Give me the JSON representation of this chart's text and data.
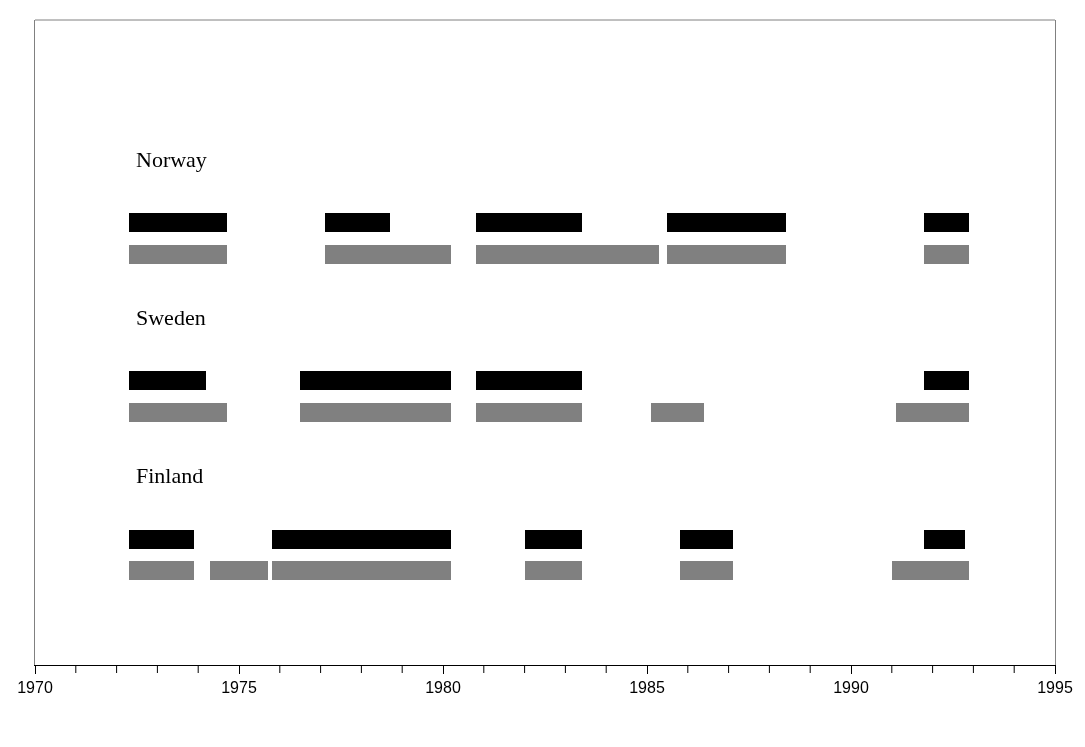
{
  "chart_data": {
    "type": "bar",
    "orientation": "horizontal",
    "tick_labels": "x",
    "categories": [
      "Norway",
      null,
      null,
      null,
      null,
      "Sweden",
      null,
      null,
      null,
      null,
      "Finland",
      null,
      null,
      null
    ],
    "xlim": [
      1970,
      1995
    ],
    "xticks": [
      1970,
      1975,
      1980,
      1985,
      1990,
      1995
    ],
    "series": [
      {
        "colors": [
          null,
          null,
          "#000000",
          "#808080",
          null,
          null,
          null,
          "#000000",
          "#808080",
          null,
          null,
          null,
          "#000000",
          "#808080"
        ],
        "base": [
          null,
          null,
          1972.3,
          1972.3,
          null,
          null,
          null,
          1972.3,
          1972.3,
          null,
          null,
          null,
          1972.3,
          1972.3
        ],
        "values": [
          null,
          null,
          2.4,
          2.4,
          null,
          null,
          null,
          1.9,
          2.4,
          null,
          null,
          null,
          1.6,
          1.6
        ]
      },
      {
        "colors": [
          null,
          null,
          "#000000",
          "#808080",
          null,
          null,
          null,
          "#000000",
          "#808080",
          null,
          null,
          null,
          "#000000",
          "#808080"
        ],
        "base": [
          null,
          null,
          1977.1,
          1977.1,
          null,
          null,
          null,
          1976.5,
          1976.5,
          null,
          null,
          null,
          1975.8,
          1974.3
        ],
        "values": [
          null,
          null,
          1.6,
          3.1,
          null,
          null,
          null,
          3.7,
          3.7,
          null,
          null,
          null,
          4.4,
          1.4
        ]
      },
      {
        "colors": [
          null,
          null,
          "#000000",
          "#808080",
          null,
          null,
          null,
          "#000000",
          "#808080",
          null,
          null,
          null,
          "#000000",
          "#808080"
        ],
        "base": [
          null,
          null,
          1980.8,
          1980.8,
          null,
          null,
          null,
          1980.8,
          1980.8,
          null,
          null,
          null,
          1982.0,
          1975.8
        ],
        "values": [
          null,
          null,
          2.6,
          4.5,
          null,
          null,
          null,
          2.6,
          2.6,
          null,
          null,
          null,
          1.4,
          4.4
        ]
      },
      {
        "colors": [
          null,
          null,
          "#000000",
          "#808080",
          null,
          null,
          null,
          "#000000",
          "#808080",
          null,
          null,
          null,
          "#000000",
          "#808080"
        ],
        "base": [
          null,
          null,
          1985.5,
          1985.5,
          null,
          null,
          null,
          1991.8,
          1985.1,
          null,
          null,
          null,
          1985.8,
          1982.0
        ],
        "values": [
          null,
          null,
          2.9,
          2.9,
          null,
          null,
          null,
          1.1,
          1.3,
          null,
          null,
          null,
          1.3,
          1.4
        ]
      },
      {
        "colors": [
          null,
          null,
          "#000000",
          "#808080",
          null,
          null,
          null,
          null,
          "#808080",
          null,
          null,
          null,
          "#000000",
          "#808080"
        ],
        "base": [
          null,
          null,
          1991.8,
          1991.8,
          null,
          null,
          null,
          null,
          1991.1,
          null,
          null,
          null,
          1991.8,
          1985.8
        ],
        "values": [
          null,
          null,
          1.1,
          1.1,
          null,
          null,
          null,
          null,
          1.8,
          null,
          null,
          null,
          1.0,
          1.3
        ]
      },
      {
        "colors": [
          null,
          null,
          null,
          null,
          null,
          null,
          null,
          null,
          null,
          null,
          null,
          null,
          null,
          "#808080"
        ],
        "base": [
          null,
          null,
          null,
          null,
          null,
          null,
          null,
          null,
          null,
          null,
          null,
          null,
          null,
          1991.0
        ],
        "values": [
          null,
          null,
          null,
          null,
          null,
          null,
          null,
          null,
          null,
          null,
          null,
          null,
          null,
          1.9
        ]
      }
    ]
  }
}
